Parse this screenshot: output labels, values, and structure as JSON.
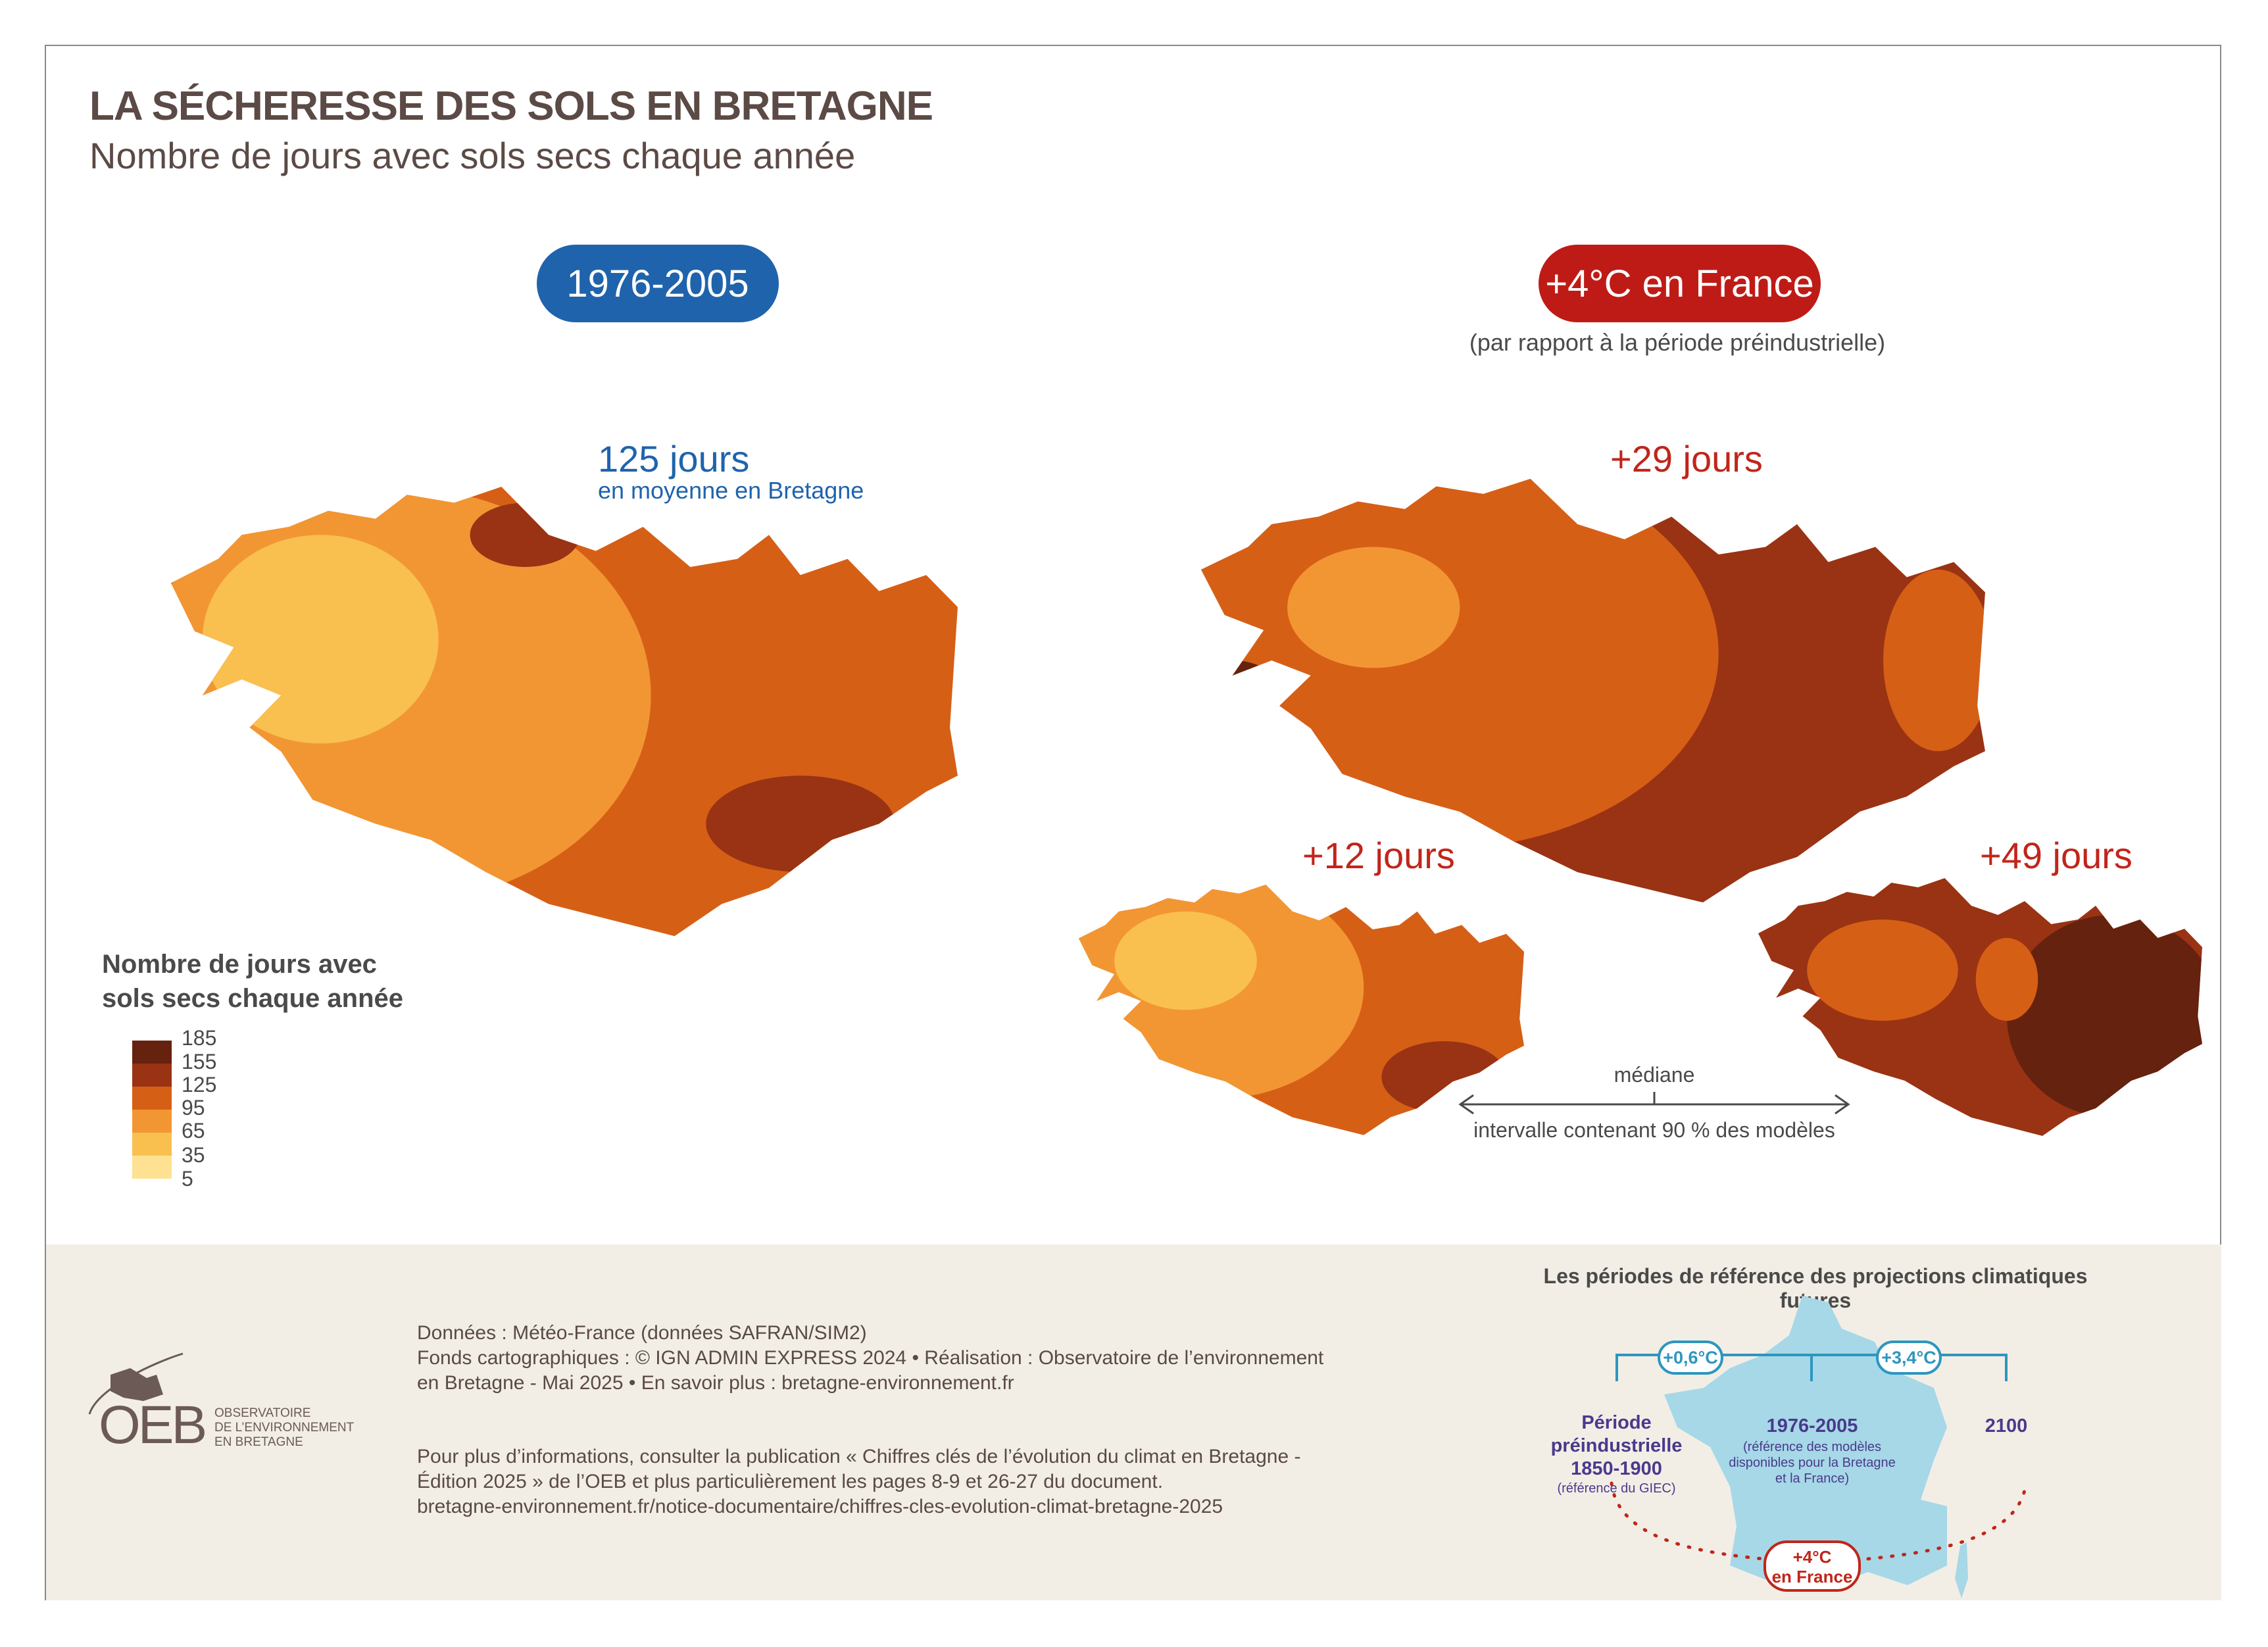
{
  "header": {
    "title": "LA SÉCHERESSE DES SOLS EN BRETAGNE",
    "subtitle": "Nombre de jours avec sols secs chaque année"
  },
  "periods": {
    "reference_label": "1976-2005",
    "future_label": "+4°C en France",
    "future_note": "(par rapport à la période préindustrielle)"
  },
  "maps": {
    "reference": {
      "value": "125 jours",
      "caption": "en moyenne en Bretagne"
    },
    "median": {
      "value": "+29 jours"
    },
    "low": {
      "value": "+12 jours"
    },
    "high": {
      "value": "+49 jours"
    },
    "range_annotation": {
      "median_label": "médiane",
      "interval_label": "intervalle contenant 90 % des modèles"
    }
  },
  "legend": {
    "title_line1": "Nombre de jours avec",
    "title_line2": "sols secs chaque année",
    "breaks": [
      "185",
      "155",
      "125",
      "95",
      "65",
      "35",
      "5"
    ],
    "colors": [
      "#65220e",
      "#993314",
      "#d65f16",
      "#f29633",
      "#f9c04f",
      "#fee291"
    ]
  },
  "footer": {
    "sources": [
      "Données : Météo-France (données SAFRAN/SIM2)",
      "Fonds cartographiques : © IGN ADMIN EXPRESS 2024 • Réalisation : Observatoire de l’environnement",
      "en Bretagne - Mai 2025  • En savoir plus : bretagne-environnement.fr"
    ],
    "more_info": [
      "Pour plus d’informations, consulter la publication « Chiffres clés de l’évolution du climat en Bretagne -",
      "Édition 2025 » de l’OEB et plus particulièrement les pages 8-9 et 26-27 du document.",
      "bretagne-environnement.fr/notice-documentaire/chiffres-cles-evolution-climat-bretagne-2025"
    ],
    "logo": {
      "acronym": "OEB",
      "line1": "OBSERVATOIRE",
      "line2": "DE L’ENVIRONNEMENT",
      "line3": "EN BRETAGNE"
    }
  },
  "reference_diagram": {
    "title": "Les périodes de référence des projections climatiques futures",
    "step1": "+0,6°C",
    "step2": "+3,4°C",
    "pre_line1": "Période",
    "pre_line2": "préindustrielle",
    "pre_line3": "1850-1900",
    "pre_note": "(référence du GIEC)",
    "ref_period": "1976-2005",
    "ref_note": "(référence des modèles disponibles pour la Bretagne et la France)",
    "end_year": "2100",
    "target_line1": "+4°C",
    "target_line2": "en France",
    "map_color": "#a6d8e7",
    "line_color": "#2e96bf"
  },
  "colors": {
    "blue": "#1f63ac",
    "red": "#bf1b16",
    "footer_bg": "#f2eee6"
  }
}
